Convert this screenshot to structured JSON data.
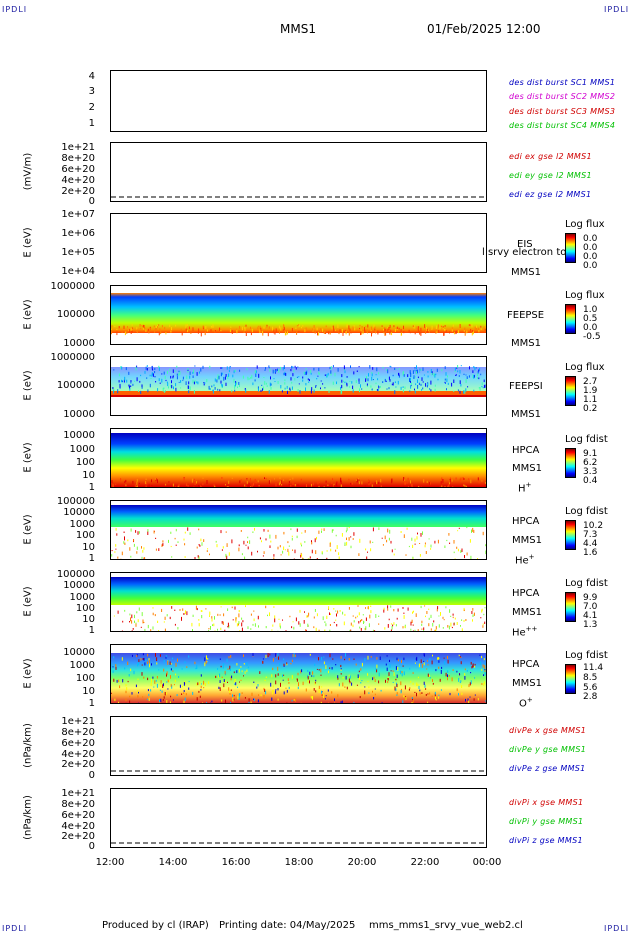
{
  "header": {
    "corner_left_top": "IPDLI",
    "corner_right_top": "IPDLI",
    "corner_left_bottom": "IPDLI",
    "corner_right_bottom": "IPDLI",
    "spacecraft": "MMS1",
    "date": "01/Feb/2025 12:00"
  },
  "footer": {
    "produced_by": "Produced by cl (IRAP)",
    "printing_date": "Printing date: 04/May/2025",
    "file": "mms_mms1_srvy_vue_web2.cl"
  },
  "colors": {
    "blue": "#0000c0",
    "magenta": "#d000d0",
    "red": "#d00000",
    "green": "#00c000",
    "corner": "#1a1aa0"
  },
  "chart_data": [
    {
      "type": "line",
      "id": "burst",
      "yticks": [
        "4",
        "3",
        "2",
        "1"
      ],
      "ylim": [
        0.5,
        4.5
      ],
      "legend": [
        {
          "text": "des dist burst SC1 MMS1",
          "color": "#0000c0"
        },
        {
          "text": "des dist burst SC2 MMS2",
          "color": "#d000d0"
        },
        {
          "text": "des dist burst SC3 MMS3",
          "color": "#d00000"
        },
        {
          "text": "des dist burst SC4 MMS4",
          "color": "#00c000"
        }
      ]
    },
    {
      "type": "line",
      "id": "edi",
      "ylabel": "(mV/m)",
      "yticks": [
        "1e+21",
        "8e+20",
        "6e+20",
        "4e+20",
        "2e+20",
        "0"
      ],
      "ylim": [
        0,
        1e+21
      ],
      "legend": [
        {
          "text": "edi ex gse l2 MMS1",
          "color": "#d00000"
        },
        {
          "text": "edi ey gse l2 MMS1",
          "color": "#00c000"
        },
        {
          "text": "edi ez gse l2 MMS1",
          "color": "#0000c0"
        }
      ]
    },
    {
      "type": "heatmap",
      "id": "eis",
      "ylabel": "E (eV)",
      "yticks": [
        "1e+07",
        "1e+06",
        "1e+05",
        "1e+04"
      ],
      "ylim": [
        10000.0,
        10000000.0
      ],
      "labels": [
        "EIS",
        "MMS1"
      ],
      "overlay": "l srvy electron to",
      "colorbar": {
        "title": "Log flux",
        "values": [
          "0.0",
          "0.0",
          "0.0",
          "0.0"
        ]
      }
    },
    {
      "type": "heatmap",
      "id": "feeps_e",
      "ylabel": "E (eV)",
      "yticks": [
        "1000000",
        "100000",
        "10000"
      ],
      "ylim": [
        10000.0,
        1000000.0
      ],
      "labels": [
        "FEEPSE",
        "MMS1"
      ],
      "colorbar": {
        "title": "Log flux",
        "values": [
          "1.0",
          "0.5",
          "0.0",
          "-0.5"
        ]
      }
    },
    {
      "type": "heatmap",
      "id": "feeps_i",
      "ylabel": "E (eV)",
      "yticks": [
        "1000000",
        "100000",
        "10000"
      ],
      "ylim": [
        10000.0,
        1000000.0
      ],
      "labels": [
        "FEEPSI",
        "MMS1"
      ],
      "colorbar": {
        "title": "Log flux",
        "values": [
          "2.7",
          "1.9",
          "1.1",
          "0.2"
        ]
      }
    },
    {
      "type": "heatmap",
      "id": "hpca_h",
      "ylabel": "E (eV)",
      "yticks": [
        "10000",
        "1000",
        "100",
        "10",
        "1"
      ],
      "ylim": [
        1,
        40000.0
      ],
      "labels": [
        "HPCA",
        "MMS1"
      ],
      "species": "H",
      "species_sup": "+",
      "colorbar": {
        "title": "Log fdist",
        "values": [
          "9.1",
          "6.2",
          "3.3",
          "0.4"
        ]
      }
    },
    {
      "type": "heatmap",
      "id": "hpca_he",
      "ylabel": "E (eV)",
      "yticks": [
        "100000",
        "10000",
        "1000",
        "100",
        "10",
        "1"
      ],
      "ylim": [
        1,
        100000.0
      ],
      "labels": [
        "HPCA",
        "MMS1"
      ],
      "species": "He",
      "species_sup": "+",
      "colorbar": {
        "title": "Log fdist",
        "values": [
          "10.2",
          "7.3",
          "4.4",
          "1.6"
        ]
      }
    },
    {
      "type": "heatmap",
      "id": "hpca_he2",
      "ylabel": "E (eV)",
      "yticks": [
        "100000",
        "10000",
        "1000",
        "100",
        "10",
        "1"
      ],
      "ylim": [
        1,
        100000.0
      ],
      "labels": [
        "HPCA",
        "MMS1"
      ],
      "species": "He",
      "species_sup": "++",
      "colorbar": {
        "title": "Log fdist",
        "values": [
          "9.9",
          "7.0",
          "4.1",
          "1.3"
        ]
      }
    },
    {
      "type": "heatmap",
      "id": "hpca_o",
      "ylabel": "E (eV)",
      "yticks": [
        "10000",
        "1000",
        "100",
        "10",
        "1"
      ],
      "ylim": [
        1,
        40000.0
      ],
      "labels": [
        "HPCA",
        "MMS1"
      ],
      "species": "O",
      "species_sup": "+",
      "colorbar": {
        "title": "Log fdist",
        "values": [
          "11.4",
          "8.5",
          "5.6",
          "2.8"
        ]
      }
    },
    {
      "type": "line",
      "id": "divpe",
      "ylabel": "(nPa/km)",
      "yticks": [
        "1e+21",
        "8e+20",
        "6e+20",
        "4e+20",
        "2e+20",
        "0"
      ],
      "ylim": [
        0,
        1e+21
      ],
      "legend": [
        {
          "text": "divPe x gse MMS1",
          "color": "#d00000"
        },
        {
          "text": "divPe y gse MMS1",
          "color": "#00c000"
        },
        {
          "text": "divPe z gse MMS1",
          "color": "#0000c0"
        }
      ]
    },
    {
      "type": "line",
      "id": "divpi",
      "ylabel": "(nPa/km)",
      "yticks": [
        "1e+21",
        "8e+20",
        "6e+20",
        "4e+20",
        "2e+20",
        "0"
      ],
      "ylim": [
        0,
        1e+21
      ],
      "legend": [
        {
          "text": "divPi x gse MMS1",
          "color": "#d00000"
        },
        {
          "text": "divPi y gse MMS1",
          "color": "#00c000"
        },
        {
          "text": "divPi z gse MMS1",
          "color": "#0000c0"
        }
      ]
    }
  ],
  "xaxis": {
    "ticks": [
      "12:00",
      "14:00",
      "16:00",
      "18:00",
      "20:00",
      "22:00",
      "00:00"
    ]
  }
}
